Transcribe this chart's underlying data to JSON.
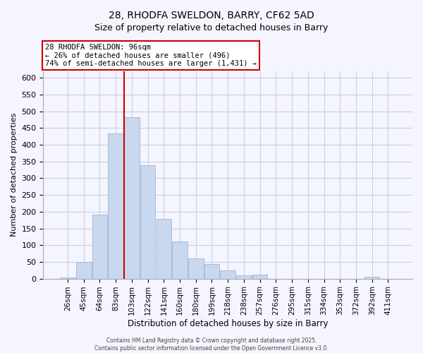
{
  "title": "28, RHODFA SWELDON, BARRY, CF62 5AD",
  "subtitle": "Size of property relative to detached houses in Barry",
  "xlabel": "Distribution of detached houses by size in Barry",
  "ylabel": "Number of detached properties",
  "bar_labels": [
    "26sqm",
    "45sqm",
    "64sqm",
    "83sqm",
    "103sqm",
    "122sqm",
    "141sqm",
    "160sqm",
    "180sqm",
    "199sqm",
    "218sqm",
    "238sqm",
    "257sqm",
    "276sqm",
    "295sqm",
    "315sqm",
    "334sqm",
    "353sqm",
    "372sqm",
    "392sqm",
    "411sqm"
  ],
  "bar_values": [
    3,
    50,
    192,
    435,
    483,
    340,
    178,
    110,
    60,
    44,
    25,
    10,
    12,
    0,
    0,
    0,
    0,
    0,
    0,
    5,
    0
  ],
  "bar_color": "#c8d8f0",
  "bar_edge_color": "#a8bcd8",
  "line_color": "#cc0000",
  "line_bar_index": 4,
  "annotation_text": "28 RHODFA SWELDON: 96sqm\n← 26% of detached houses are smaller (496)\n74% of semi-detached houses are larger (1,431) →",
  "annotation_box_color": "#ffffff",
  "annotation_box_edge": "#cc0000",
  "ylim": [
    0,
    620
  ],
  "yticks": [
    0,
    50,
    100,
    150,
    200,
    250,
    300,
    350,
    400,
    450,
    500,
    550,
    600
  ],
  "footer_line1": "Contains HM Land Registry data © Crown copyright and database right 2025.",
  "footer_line2": "Contains public sector information licensed under the Open Government Licence v3.0.",
  "background_color": "#f5f5ff",
  "grid_color": "#c8d0e0",
  "title_fontsize": 10,
  "subtitle_fontsize": 9
}
